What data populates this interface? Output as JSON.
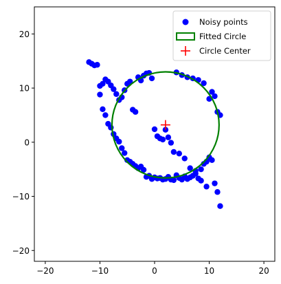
{
  "chart_data": {
    "type": "scatter",
    "title": "",
    "xlabel": "",
    "ylabel": "",
    "xlim": [
      -22,
      22
    ],
    "ylim": [
      -22,
      25
    ],
    "xticks": [
      -20,
      -10,
      0,
      10,
      20
    ],
    "yticks": [
      -20,
      -10,
      0,
      10,
      20
    ],
    "grid": false,
    "legend": {
      "placement": "top-right"
    },
    "colors": {
      "points": "#0000ff",
      "circle": "#008000",
      "center": "#ff0000"
    },
    "series": [
      {
        "name": "Noisy points",
        "kind": "scatter",
        "x": [
          -12,
          -11.5,
          -11,
          -10.5,
          -10,
          -9.5,
          -9,
          -8.5,
          -8,
          -7.5,
          -7,
          -6.5,
          -6,
          -5.5,
          -5,
          -4.5,
          -4,
          -3.5,
          -3,
          -2.5,
          -2,
          -1.5,
          -1,
          -0.5,
          0,
          0.5,
          1,
          1.5,
          2,
          2.5,
          3,
          3.5,
          4,
          4.5,
          5,
          5.5,
          6,
          6.5,
          7,
          7.5,
          8,
          8.5,
          9,
          9.5,
          10,
          10.5,
          11,
          11.5,
          12,
          12,
          11.5,
          11,
          10.5,
          10,
          9.5,
          9,
          8.5,
          8,
          7.5,
          7,
          6.5,
          6,
          5.5,
          5,
          4.5,
          4,
          3.5,
          3,
          2.5,
          2,
          1.5,
          1,
          0.5,
          0,
          -0.5,
          -1,
          -1.5,
          -2,
          -2.5,
          -3,
          -3.5,
          -4,
          -4.5,
          -5,
          -5.5,
          -6,
          -6.5,
          -7,
          -7.5,
          -8,
          -8.5,
          -9,
          -9.5,
          -10
        ],
        "y": [
          14.8,
          14.5,
          14.2,
          14.3,
          10.4,
          10.8,
          11.6,
          11.2,
          10.5,
          9.8,
          8.9,
          7.8,
          8.3,
          9.6,
          10.8,
          11.2,
          6.0,
          5.6,
          12.0,
          11.4,
          12.3,
          12.7,
          12.8,
          11.8,
          2.4,
          1.1,
          0.7,
          0.5,
          2.3,
          0.9,
          -0.1,
          -1.8,
          12.9,
          -2.1,
          12.4,
          -3.0,
          12.0,
          -4.8,
          11.8,
          -5.3,
          11.5,
          -7.1,
          10.9,
          -8.2,
          8.0,
          9.3,
          8.5,
          5.6,
          5.0,
          -11.8,
          -9.2,
          -7.6,
          -3.3,
          -2.8,
          -3.6,
          -4.0,
          -5.0,
          -6.7,
          -5.8,
          -6.2,
          -6.5,
          -6.8,
          -6.3,
          -6.9,
          -6.6,
          -6.1,
          -7.0,
          -6.9,
          -6.4,
          -6.8,
          -6.9,
          -6.6,
          -6.7,
          -6.5,
          -6.8,
          -6.2,
          -6.4,
          -5.1,
          -4.5,
          -4.8,
          -4.4,
          -4.0,
          -3.6,
          -3.3,
          -2.0,
          -1.1,
          0.1,
          0.7,
          1.5,
          2.7,
          3.4,
          5.0,
          6.1,
          8.8
        ]
      },
      {
        "name": "Fitted Circle",
        "kind": "circle",
        "center": [
          2.0,
          3.2
        ],
        "radius": 9.8
      },
      {
        "name": "Circle Center",
        "kind": "marker",
        "x": [
          2.0
        ],
        "y": [
          3.2
        ]
      }
    ]
  }
}
